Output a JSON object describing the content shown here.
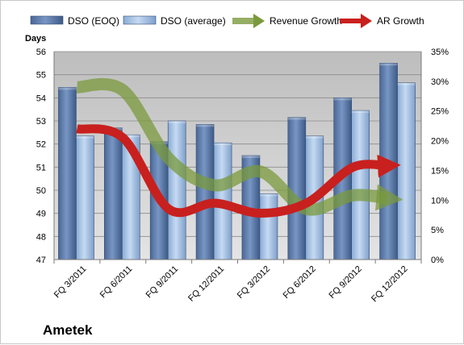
{
  "chart_data": {
    "type": "bar",
    "company": "Ametek",
    "categories": [
      "FQ 3/2011",
      "FQ 6/2011",
      "FQ 9/2011",
      "FQ 12/2011",
      "FQ 3/2012",
      "FQ 6/2012",
      "FQ 9/2012",
      "FQ 12/2012"
    ],
    "ylabel": "Days",
    "ylim": [
      47,
      56
    ],
    "y_ticks": [
      "47",
      "48",
      "49",
      "50",
      "51",
      "52",
      "53",
      "54",
      "55",
      "56"
    ],
    "y2lim": [
      0,
      35
    ],
    "y2_ticks": [
      "0%",
      "5%",
      "10%",
      "15%",
      "20%",
      "25%",
      "30%",
      "35%"
    ],
    "grid": true,
    "legend_position": "top",
    "series": [
      {
        "name": "DSO (EOQ)",
        "type": "bar",
        "axis": "left",
        "color": "#5877a8",
        "values": [
          54.45,
          52.7,
          52.1,
          52.85,
          51.5,
          53.15,
          54.0,
          55.5
        ]
      },
      {
        "name": "DSO (average)",
        "type": "bar",
        "axis": "left",
        "color": "#a7c4e6",
        "values": [
          52.35,
          52.4,
          53.0,
          52.05,
          49.85,
          52.35,
          53.45,
          54.65
        ]
      },
      {
        "name": "Revenue Growth",
        "type": "line",
        "axis": "right",
        "color": "#7a9a3c",
        "values": [
          29.0,
          28.5,
          17.0,
          12.5,
          14.8,
          8.5,
          10.8,
          10.3
        ]
      },
      {
        "name": "AR Growth",
        "type": "line",
        "axis": "right",
        "color": "#c8201e",
        "values": [
          22.0,
          20.5,
          8.5,
          9.5,
          7.8,
          9.5,
          15.5,
          15.8
        ]
      }
    ]
  }
}
